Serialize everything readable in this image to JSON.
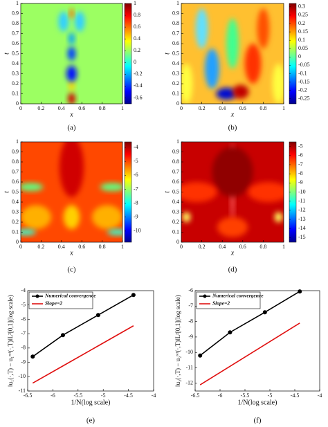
{
  "chart_data": [
    {
      "type": "heatmap",
      "caption": "(a)",
      "xlabel": "x",
      "ylabel": "t",
      "xlim": [
        0,
        1
      ],
      "xticks": [
        0,
        0.2,
        0.4,
        0.6,
        0.8,
        1
      ],
      "ylim": [
        0,
        1
      ],
      "yticks": [
        0,
        0.1,
        0.2,
        0.3,
        0.4,
        0.5,
        0.6,
        0.7,
        0.8,
        0.9,
        1
      ],
      "zlim": [
        -0.7,
        1
      ],
      "zticks": [
        1,
        0.8,
        0.6,
        0.4,
        0.2,
        0,
        -0.2,
        -0.4,
        -0.6
      ]
    },
    {
      "type": "heatmap",
      "caption": "(b)",
      "xlabel": "x",
      "ylabel": "t",
      "xlim": [
        0,
        1
      ],
      "xticks": [
        0,
        0.2,
        0.4,
        0.6,
        0.8,
        1
      ],
      "ylim": [
        0,
        1
      ],
      "yticks": [
        0,
        0.1,
        0.2,
        0.3,
        0.4,
        0.5,
        0.6,
        0.7,
        0.8,
        0.9,
        1
      ],
      "zlim": [
        -0.28,
        0.32
      ],
      "zticks": [
        0.3,
        0.25,
        0.2,
        0.15,
        0.1,
        0.05,
        0,
        -0.05,
        -0.1,
        -0.15,
        -0.2,
        -0.25
      ]
    },
    {
      "type": "heatmap",
      "caption": "(c)",
      "xlabel": "x",
      "ylabel": "t",
      "xlim": [
        0,
        1
      ],
      "xticks": [
        0,
        0.2,
        0.4,
        0.6,
        0.8,
        1
      ],
      "ylim": [
        0,
        1
      ],
      "yticks": [
        0,
        0.1,
        0.2,
        0.3,
        0.4,
        0.5,
        0.6,
        0.7,
        0.8,
        0.9,
        1
      ],
      "zlim": [
        -10.8,
        -3.6
      ],
      "zticks": [
        -4,
        -5,
        -6,
        -7,
        -8,
        -9,
        -10
      ]
    },
    {
      "type": "heatmap",
      "caption": "(d)",
      "xlabel": "x",
      "ylabel": "t",
      "xlim": [
        0,
        1
      ],
      "xticks": [
        0,
        0.2,
        0.4,
        0.6,
        0.8,
        1
      ],
      "ylim": [
        0,
        1
      ],
      "yticks": [
        0,
        0.1,
        0.2,
        0.3,
        0.4,
        0.5,
        0.6,
        0.7,
        0.8,
        0.9,
        1
      ],
      "zlim": [
        -15.5,
        -4.5
      ],
      "zticks": [
        -5,
        -6,
        -7,
        -8,
        -9,
        -10,
        -11,
        -12,
        -13,
        -14,
        -15
      ]
    },
    {
      "type": "line",
      "caption": "(e)",
      "xlabel": "1/N(log scale)",
      "ylabel": "‖u₁(·,T) − u₁ʳᵉᶠ(·,T)‖L²[0,1](log scale)",
      "xlim": [
        -6.5,
        -4
      ],
      "xticks": [
        -6.5,
        -6,
        -5.5,
        -5,
        -4.5,
        -4
      ],
      "ylim": [
        -11,
        -4
      ],
      "yticks": [
        -11,
        -10,
        -9,
        -8,
        -7,
        -6,
        -5,
        -4
      ],
      "x": [
        -6.4,
        -5.8,
        -5.1,
        -4.4
      ],
      "series": [
        {
          "name": "Numerical convergence",
          "color": "#000000",
          "values": [
            -8.6,
            -7.1,
            -5.7,
            -4.3
          ]
        },
        {
          "name": "Slope=2",
          "color": "#e01010",
          "values": [
            -10.45,
            -9.25,
            -7.85,
            -6.45
          ]
        }
      ]
    },
    {
      "type": "line",
      "caption": "(f)",
      "xlabel": "1/N(log scale)",
      "ylabel": "‖u₂(·,T) − u₂ʳᵉᶠ(·,T)‖L²[0,1](log scale)",
      "xlim": [
        -6.5,
        -4
      ],
      "xticks": [
        -6.5,
        -6,
        -5.5,
        -5,
        -4.5,
        -4
      ],
      "ylim": [
        -12.5,
        -6
      ],
      "yticks": [
        -12,
        -11,
        -10,
        -9,
        -8,
        -7,
        -6
      ],
      "x": [
        -6.4,
        -5.8,
        -5.1,
        -4.4
      ],
      "series": [
        {
          "name": "Numerical convergence",
          "color": "#000000",
          "values": [
            -10.2,
            -8.7,
            -7.4,
            -6.05
          ]
        },
        {
          "name": "Slope=2",
          "color": "#e01010",
          "values": [
            -12.1,
            -10.9,
            -9.5,
            -8.1
          ]
        }
      ]
    }
  ]
}
